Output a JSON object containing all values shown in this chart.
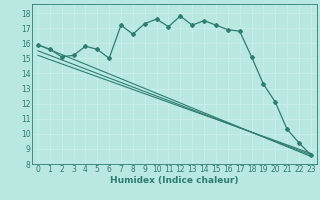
{
  "title": "",
  "xlabel": "Humidex (Indice chaleur)",
  "bg_color": "#b8e8e0",
  "grid_color": "#c8eeea",
  "line_color": "#2e7d6e",
  "xlim": [
    -0.5,
    23.5
  ],
  "ylim": [
    8,
    18.6
  ],
  "xticks": [
    0,
    1,
    2,
    3,
    4,
    5,
    6,
    7,
    8,
    9,
    10,
    11,
    12,
    13,
    14,
    15,
    16,
    17,
    18,
    19,
    20,
    21,
    22,
    23
  ],
  "yticks": [
    8,
    9,
    10,
    11,
    12,
    13,
    14,
    15,
    16,
    17,
    18
  ],
  "line1_x": [
    0,
    1,
    2,
    3,
    4,
    5,
    6,
    7,
    8,
    9,
    10,
    11,
    12,
    13,
    14,
    15,
    16,
    17,
    18,
    19,
    20,
    21,
    22,
    23
  ],
  "line1_y": [
    15.9,
    15.6,
    15.1,
    15.2,
    15.8,
    15.6,
    15.0,
    17.2,
    16.6,
    17.3,
    17.6,
    17.1,
    17.8,
    17.2,
    17.5,
    17.2,
    16.9,
    16.8,
    15.1,
    13.3,
    12.1,
    10.3,
    9.4,
    8.6
  ],
  "trend1_x": [
    0,
    23
  ],
  "trend1_y": [
    15.9,
    8.5
  ],
  "trend2_x": [
    0,
    23
  ],
  "trend2_y": [
    15.5,
    8.6
  ],
  "trend3_x": [
    0,
    23
  ],
  "trend3_y": [
    15.2,
    8.7
  ]
}
